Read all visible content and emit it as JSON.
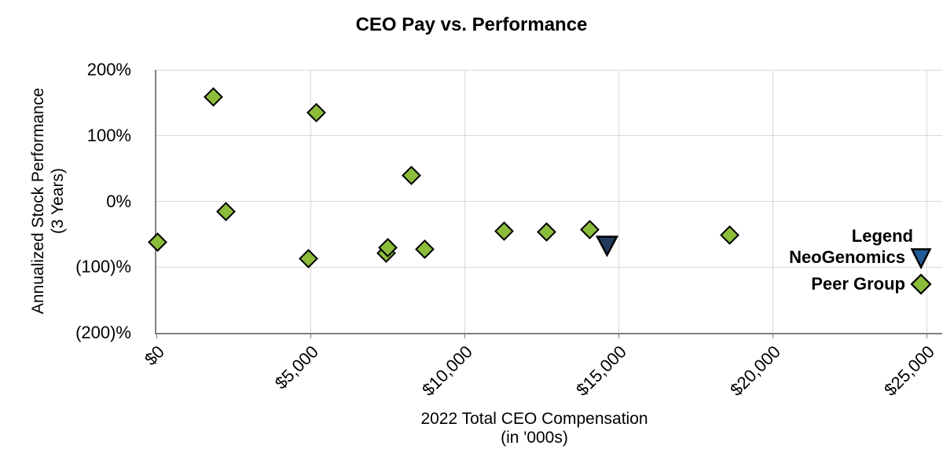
{
  "chart": {
    "title": "CEO Pay vs. Performance",
    "x_axis": {
      "title_line1": "2022 Total CEO Compensation",
      "title_line2": "(in '000s)",
      "tick_labels": [
        "$0",
        "$5,000",
        "$10,000",
        "$15,000",
        "$20,000",
        "$25,000"
      ]
    },
    "y_axis": {
      "title_line1": "Annualized Stock Performance",
      "title_line2": "(3 Years)",
      "tick_labels": [
        "200%",
        "100%",
        "0%",
        "(100)%",
        "(200)%"
      ]
    },
    "legend": {
      "heading": "Legend",
      "items": [
        {
          "label": "NeoGenomics",
          "marker": "triangle-down-icon",
          "color": "#1f5c99"
        },
        {
          "label": "Peer Group",
          "marker": "diamond-icon",
          "color": "#8cbd3a"
        }
      ]
    }
  },
  "colors": {
    "peer_marker": "#8cbd3a",
    "neogenomics_marker": "#223a5e",
    "legend_neogenomics_marker": "#1f5c99",
    "marker_outline": "#000000",
    "gridline": "#d9d9d9",
    "axis_line": "#7f7f7f",
    "text": "#000000"
  },
  "chart_data": {
    "type": "scatter",
    "title": "CEO Pay vs. Performance",
    "xlabel": "2022 Total CEO Compensation (in '000s)",
    "ylabel": "Annualized Stock Performance (3 Years)",
    "xlim": [
      0,
      25500
    ],
    "ylim": [
      -200,
      200
    ],
    "x_tick_values": [
      0,
      5000,
      10000,
      15000,
      20000,
      25000
    ],
    "y_tick_values": [
      200,
      100,
      0,
      -100,
      -200
    ],
    "grid": true,
    "legend_position": "inside-right",
    "series": [
      {
        "name": "NeoGenomics",
        "marker": "triangle-down",
        "color": "#223a5e",
        "points": [
          {
            "x": 14620,
            "y": -67
          }
        ]
      },
      {
        "name": "Peer Group",
        "marker": "diamond",
        "color": "#8cbd3a",
        "points": [
          {
            "x": 50,
            "y": -62
          },
          {
            "x": 1860,
            "y": 159
          },
          {
            "x": 2250,
            "y": -15
          },
          {
            "x": 4930,
            "y": -87
          },
          {
            "x": 5180,
            "y": 135
          },
          {
            "x": 7450,
            "y": -79
          },
          {
            "x": 7500,
            "y": -71
          },
          {
            "x": 8270,
            "y": 39
          },
          {
            "x": 8720,
            "y": -73
          },
          {
            "x": 11280,
            "y": -45
          },
          {
            "x": 12670,
            "y": -47
          },
          {
            "x": 14060,
            "y": -43
          },
          {
            "x": 18600,
            "y": -51
          }
        ]
      }
    ]
  }
}
